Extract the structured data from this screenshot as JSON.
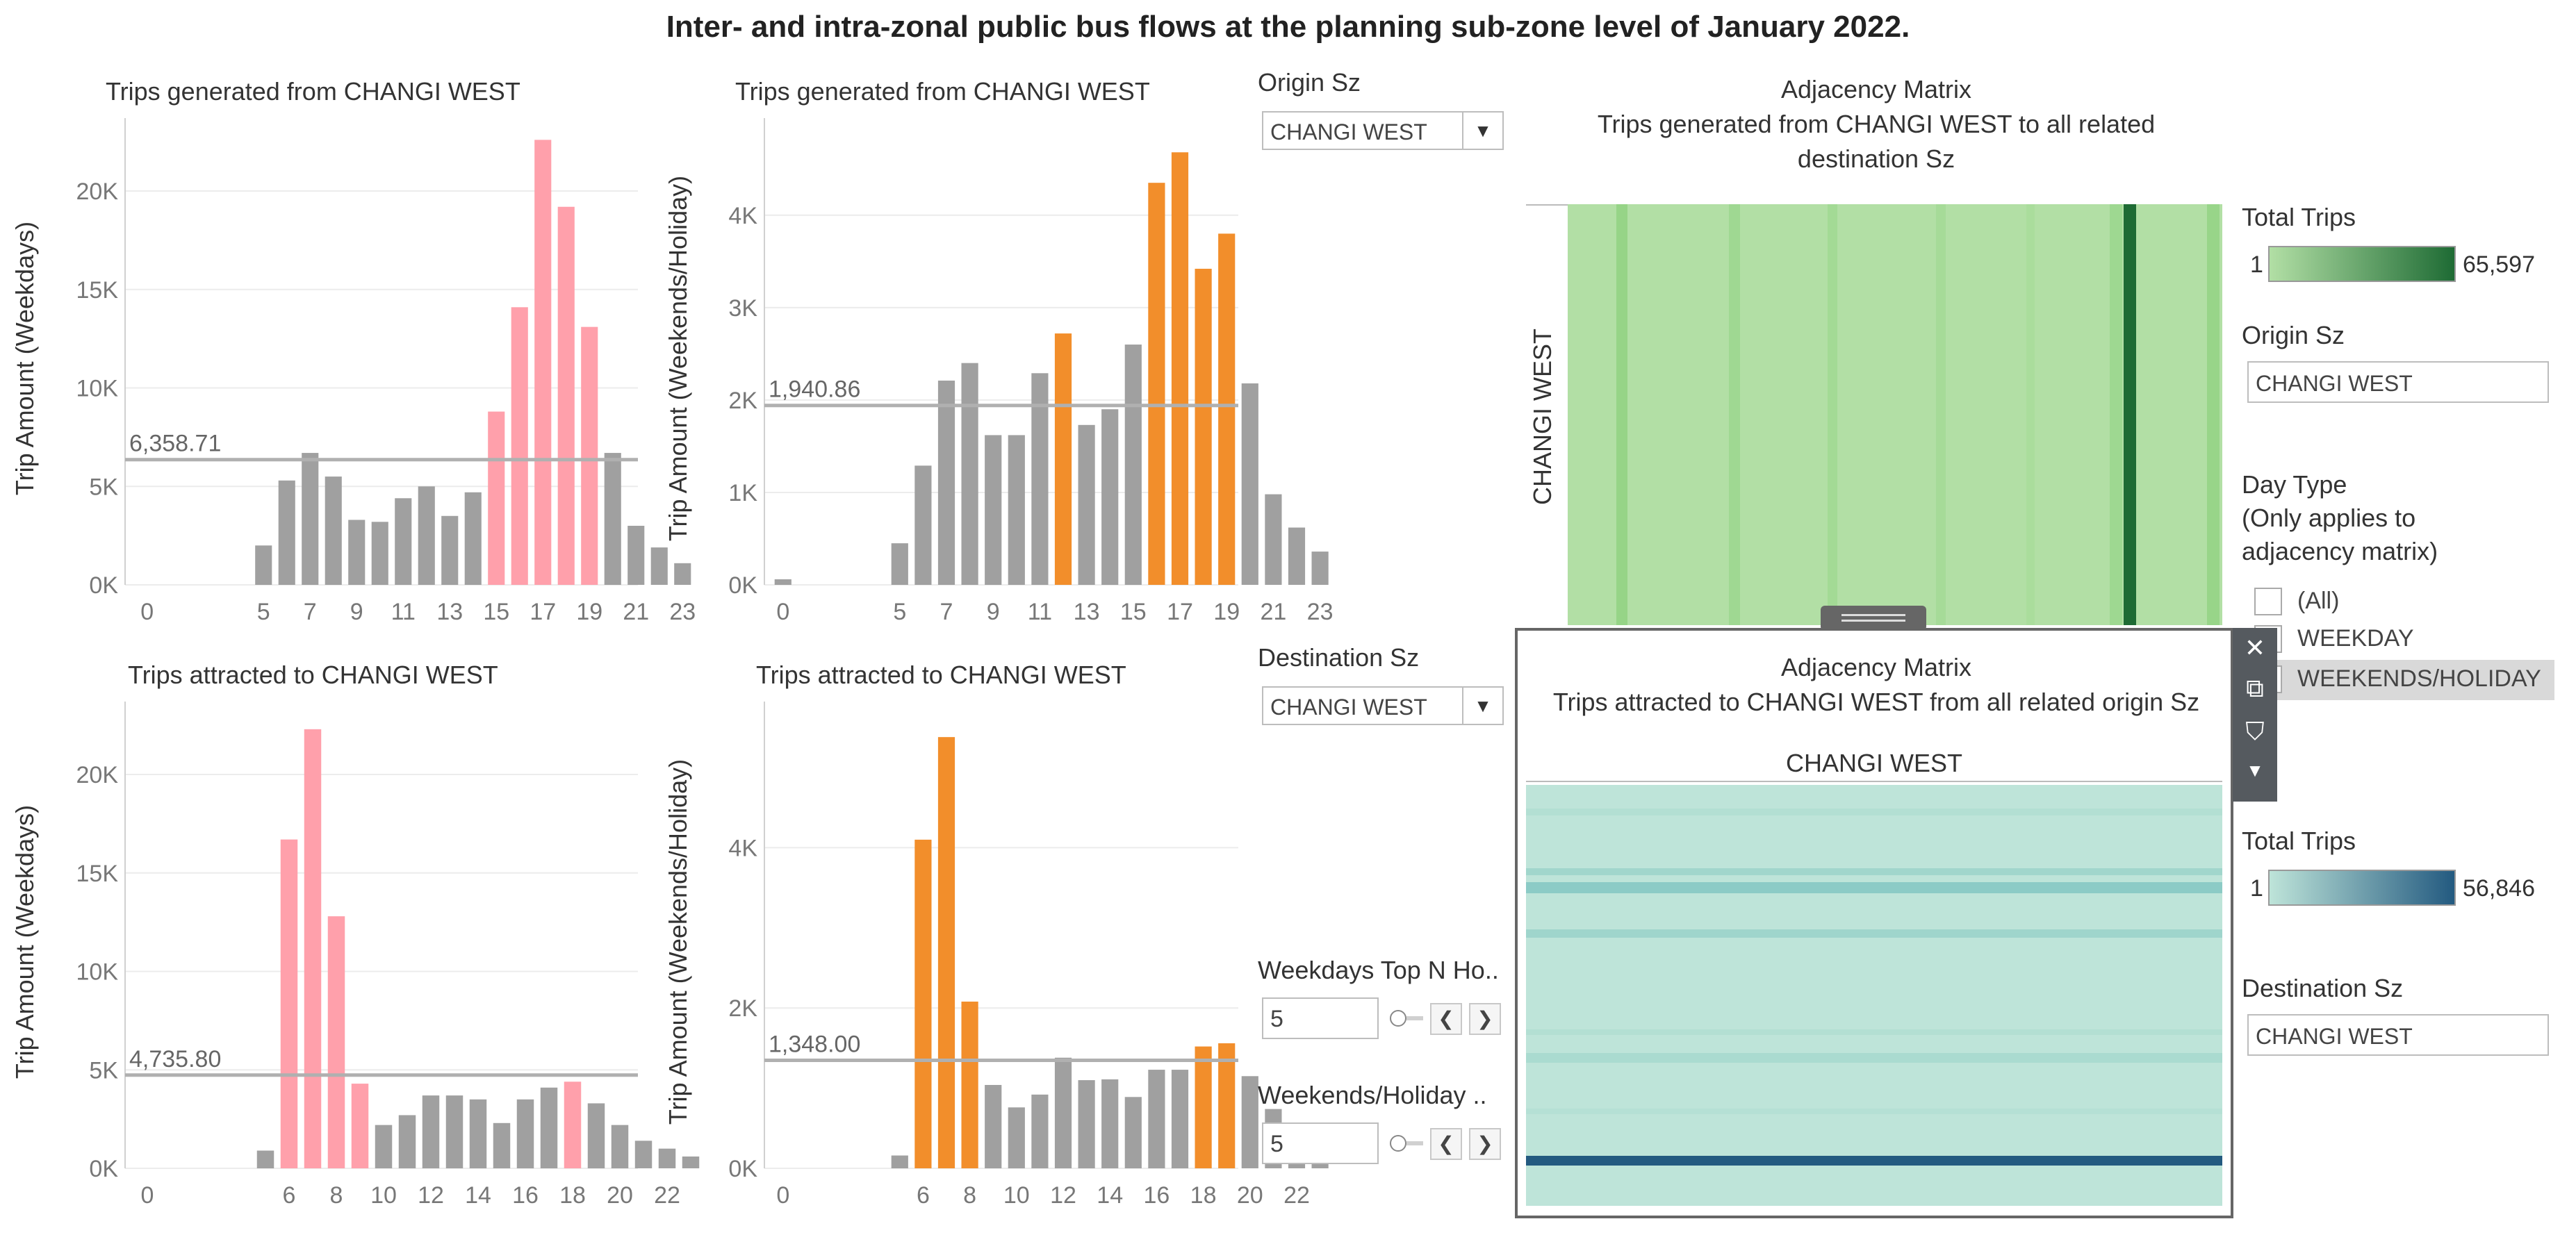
{
  "main_title": "Inter- and intra-zonal public bus flows at the planning sub-zone level of January 2022.",
  "colors": {
    "grey_bar": "#a0a0a0",
    "pink_bar": "#ffa0ab",
    "orange_bar": "#f28e2b",
    "ref_line": "#b0b0b0",
    "green_light": "#b2dfa5",
    "green_dark": "#1e6b34",
    "teal_light": "#bee4d9",
    "teal_dark": "#235a80"
  },
  "charts": {
    "gen_weekday": {
      "title": "Trips generated from CHANGI WEST",
      "ylabel": "Trip Amount (Weekdays)",
      "ref_label": "6,358.71",
      "ticks_y": [
        "20K",
        "15K",
        "10K",
        "5K",
        "0K"
      ],
      "ticks_x": [
        "0",
        "5",
        "7",
        "9",
        "11",
        "13",
        "15",
        "17",
        "19",
        "21",
        "23"
      ]
    },
    "gen_weekend": {
      "title": "Trips generated from CHANGI WEST",
      "ylabel": "Trip Amount (Weekends/Holiday)",
      "ref_label": "1,940.86",
      "ticks_y": [
        "4K",
        "3K",
        "2K",
        "1K",
        "0K"
      ],
      "ticks_x": [
        "0",
        "5",
        "7",
        "9",
        "11",
        "13",
        "15",
        "17",
        "19",
        "21",
        "23"
      ]
    },
    "att_weekday": {
      "title": "Trips attracted to CHANGI WEST",
      "ylabel": "Trip Amount (Weekdays)",
      "ref_label": "4,735.80",
      "ticks_y": [
        "20K",
        "15K",
        "10K",
        "5K",
        "0K"
      ],
      "ticks_x": [
        "0",
        "6",
        "8",
        "10",
        "12",
        "14",
        "16",
        "18",
        "20",
        "22"
      ]
    },
    "att_weekend": {
      "title": "Trips attracted to CHANGI WEST",
      "ylabel": "Trip Amount (Weekends/Holiday)",
      "ref_label": "1,348.00",
      "ticks_y": [
        "4K",
        "2K",
        "0K"
      ],
      "ticks_x": [
        "0",
        "6",
        "8",
        "10",
        "12",
        "14",
        "16",
        "18",
        "20",
        "22"
      ]
    }
  },
  "chart_data": [
    {
      "type": "bar",
      "title": "Trips generated from CHANGI WEST",
      "xlabel": "",
      "ylabel": "Trip Amount (Weekdays)",
      "ylim": [
        0,
        23000
      ],
      "reference_line": 6358.71,
      "points": [
        {
          "x": 5,
          "y": 2000,
          "h": false
        },
        {
          "x": 6,
          "y": 5300,
          "h": false
        },
        {
          "x": 7,
          "y": 6700,
          "h": false
        },
        {
          "x": 8,
          "y": 5500,
          "h": false
        },
        {
          "x": 9,
          "y": 3300,
          "h": false
        },
        {
          "x": 10,
          "y": 3200,
          "h": false
        },
        {
          "x": 11,
          "y": 4400,
          "h": false
        },
        {
          "x": 12,
          "y": 5000,
          "h": false
        },
        {
          "x": 13,
          "y": 3500,
          "h": false
        },
        {
          "x": 14,
          "y": 4700,
          "h": false
        },
        {
          "x": 15,
          "y": 8800,
          "h": true
        },
        {
          "x": 16,
          "y": 14100,
          "h": true
        },
        {
          "x": 17,
          "y": 22600,
          "h": true
        },
        {
          "x": 18,
          "y": 19200,
          "h": true
        },
        {
          "x": 19,
          "y": 13100,
          "h": true
        },
        {
          "x": 20,
          "y": 6700,
          "h": false
        },
        {
          "x": 21,
          "y": 3000,
          "h": false
        },
        {
          "x": 22,
          "y": 1900,
          "h": false
        },
        {
          "x": 23,
          "y": 1100,
          "h": false
        }
      ]
    },
    {
      "type": "bar",
      "title": "Trips generated from CHANGI WEST",
      "xlabel": "",
      "ylabel": "Trip Amount (Weekends/Holiday)",
      "ylim": [
        0,
        4900
      ],
      "reference_line": 1940.86,
      "points": [
        {
          "x": 0,
          "y": 60,
          "h": false
        },
        {
          "x": 5,
          "y": 450,
          "h": false
        },
        {
          "x": 6,
          "y": 1290,
          "h": false
        },
        {
          "x": 7,
          "y": 2210,
          "h": false
        },
        {
          "x": 8,
          "y": 2400,
          "h": false
        },
        {
          "x": 9,
          "y": 1620,
          "h": false
        },
        {
          "x": 10,
          "y": 1620,
          "h": false
        },
        {
          "x": 11,
          "y": 2290,
          "h": false
        },
        {
          "x": 12,
          "y": 2720,
          "h": true
        },
        {
          "x": 13,
          "y": 1730,
          "h": false
        },
        {
          "x": 14,
          "y": 1900,
          "h": false
        },
        {
          "x": 15,
          "y": 2600,
          "h": false
        },
        {
          "x": 16,
          "y": 4350,
          "h": true
        },
        {
          "x": 17,
          "y": 4680,
          "h": true
        },
        {
          "x": 18,
          "y": 3420,
          "h": true
        },
        {
          "x": 19,
          "y": 3800,
          "h": true
        },
        {
          "x": 20,
          "y": 2180,
          "h": false
        },
        {
          "x": 21,
          "y": 980,
          "h": false
        },
        {
          "x": 22,
          "y": 620,
          "h": false
        },
        {
          "x": 23,
          "y": 360,
          "h": false
        }
      ]
    },
    {
      "type": "bar",
      "title": "Trips attracted to CHANGI WEST",
      "xlabel": "",
      "ylabel": "Trip Amount (Weekdays)",
      "ylim": [
        0,
        23000
      ],
      "reference_line": 4735.8,
      "points": [
        {
          "x": 5,
          "y": 900,
          "h": false
        },
        {
          "x": 6,
          "y": 16700,
          "h": true
        },
        {
          "x": 7,
          "y": 22300,
          "h": true
        },
        {
          "x": 8,
          "y": 12800,
          "h": true
        },
        {
          "x": 9,
          "y": 4300,
          "h": true
        },
        {
          "x": 10,
          "y": 2200,
          "h": false
        },
        {
          "x": 11,
          "y": 2700,
          "h": false
        },
        {
          "x": 12,
          "y": 3700,
          "h": false
        },
        {
          "x": 13,
          "y": 3700,
          "h": false
        },
        {
          "x": 14,
          "y": 3500,
          "h": false
        },
        {
          "x": 15,
          "y": 2300,
          "h": false
        },
        {
          "x": 16,
          "y": 3500,
          "h": false
        },
        {
          "x": 17,
          "y": 4100,
          "h": false
        },
        {
          "x": 18,
          "y": 4400,
          "h": true
        },
        {
          "x": 19,
          "y": 3300,
          "h": false
        },
        {
          "x": 20,
          "y": 2200,
          "h": false
        },
        {
          "x": 21,
          "y": 1400,
          "h": false
        },
        {
          "x": 22,
          "y": 1000,
          "h": false
        },
        {
          "x": 23,
          "y": 600,
          "h": false
        }
      ]
    },
    {
      "type": "bar",
      "title": "Trips attracted to CHANGI WEST",
      "xlabel": "",
      "ylabel": "Trip Amount (Weekends/Holiday)",
      "ylim": [
        0,
        5650
      ],
      "reference_line": 1348.0,
      "points": [
        {
          "x": 5,
          "y": 160,
          "h": false
        },
        {
          "x": 6,
          "y": 4100,
          "h": true
        },
        {
          "x": 7,
          "y": 5380,
          "h": true
        },
        {
          "x": 8,
          "y": 2080,
          "h": true
        },
        {
          "x": 9,
          "y": 1040,
          "h": false
        },
        {
          "x": 10,
          "y": 760,
          "h": false
        },
        {
          "x": 11,
          "y": 920,
          "h": false
        },
        {
          "x": 12,
          "y": 1380,
          "h": false
        },
        {
          "x": 13,
          "y": 1100,
          "h": false
        },
        {
          "x": 14,
          "y": 1110,
          "h": false
        },
        {
          "x": 15,
          "y": 890,
          "h": false
        },
        {
          "x": 16,
          "y": 1230,
          "h": false
        },
        {
          "x": 17,
          "y": 1230,
          "h": false
        },
        {
          "x": 18,
          "y": 1520,
          "h": true
        },
        {
          "x": 19,
          "y": 1560,
          "h": true
        },
        {
          "x": 20,
          "y": 1150,
          "h": false
        },
        {
          "x": 21,
          "y": 740,
          "h": false
        },
        {
          "x": 22,
          "y": 510,
          "h": false
        },
        {
          "x": 23,
          "y": 300,
          "h": false
        }
      ]
    }
  ],
  "controls": {
    "origin_label": "Origin Sz",
    "origin_value": "CHANGI WEST",
    "dest_label": "Destination Sz",
    "dest_value": "CHANGI WEST",
    "weekday_topn_label": "Weekdays Top N Ho..",
    "weekday_topn_value": "5",
    "weekend_topn_label": "Weekends/Holiday ..",
    "weekend_topn_value": "5",
    "prev_icon": "chevron-left-icon",
    "next_icon": "chevron-right-icon"
  },
  "adj_top": {
    "title_line1": "Adjacency Matrix",
    "title_line2": "Trips generated from CHANGI WEST to all related",
    "title_line3": "destination Sz",
    "row_label": "CHANGI WEST",
    "legend_title": "Total Trips",
    "legend_min": "1",
    "legend_max": "65,597",
    "filter_label": "Origin Sz",
    "filter_value": "CHANGI WEST"
  },
  "day_type": {
    "title_line1": "Day Type",
    "title_line2": "(Only applies to",
    "title_line3": "adjacency matrix)",
    "options": [
      "(All)",
      "WEEKDAY",
      "WEEKENDS/HOLIDAY"
    ]
  },
  "adj_bottom": {
    "title_line1": "Adjacency Matrix",
    "title_line2": "Trips attracted to  CHANGI WEST from all related origin Sz",
    "col_label": "CHANGI WEST",
    "legend_title": "Total Trips",
    "legend_min": "1",
    "legend_max": "56,846",
    "filter_label": "Destination Sz",
    "filter_value": "CHANGI WEST"
  },
  "toolbar": {
    "close_icon": "close-icon",
    "popout_icon": "popout-icon",
    "filter_icon": "filter-icon",
    "more_icon": "chevron-down-icon"
  }
}
